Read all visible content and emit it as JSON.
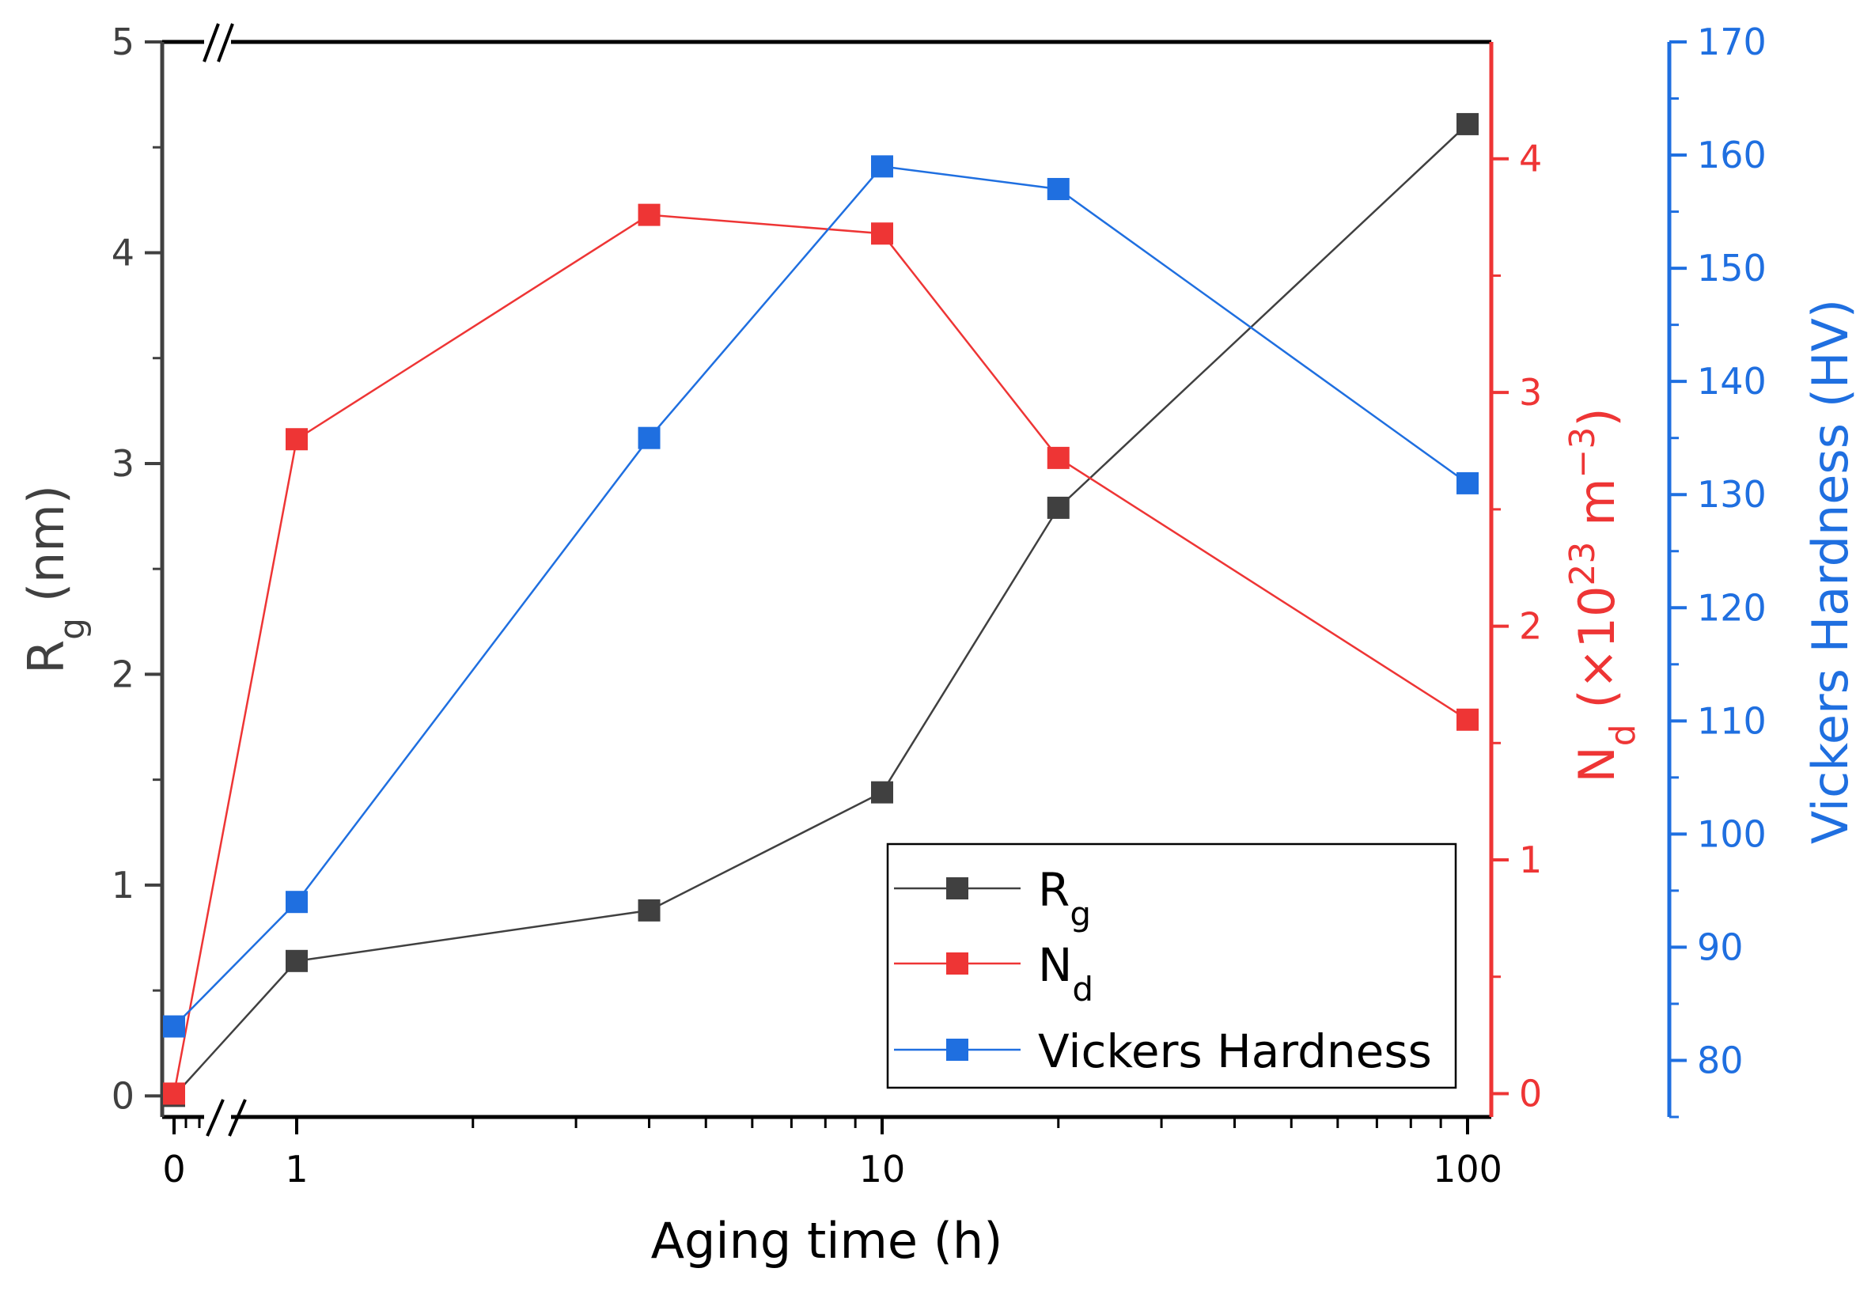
{
  "chart_data": {
    "type": "line",
    "x_scale": "log with broken segment at 0",
    "x": [
      0,
      1,
      4,
      10,
      20,
      100
    ],
    "xlabel": "Aging time (h)",
    "x_ticks": [
      "0",
      "1",
      "10",
      "100"
    ],
    "series": [
      {
        "name": "Rg",
        "legend_main": "R",
        "legend_sub": "g",
        "axis": "left",
        "color": "#404040",
        "values": [
          0.0,
          0.64,
          0.88,
          1.44,
          2.79,
          4.61
        ]
      },
      {
        "name": "Nd",
        "legend_main": "N",
        "legend_sub": "d",
        "axis": "right1",
        "color": "#ee3535",
        "values": [
          0.0,
          2.8,
          3.76,
          3.68,
          2.72,
          1.6
        ]
      },
      {
        "name": "Vickers Hardness",
        "legend_main": "Vickers Hardness",
        "legend_sub": "",
        "axis": "right2",
        "color": "#1f6fe0",
        "values": [
          83,
          94,
          135,
          159,
          157,
          131
        ]
      }
    ],
    "y_left": {
      "label_main": "R",
      "label_sub": "g",
      "label_rest": " (nm)",
      "ylim": [
        -0.1,
        5
      ],
      "ticks": [
        "0",
        "1",
        "2",
        "3",
        "4",
        "5"
      ],
      "color": "#404040"
    },
    "y_right1": {
      "label_main": "N",
      "label_sub": "d",
      "label_mid": " (×10",
      "label_sup": "23",
      "label_unit": " m",
      "label_sup2": "−3",
      "label_end": ")",
      "ylim": [
        -0.1,
        4.5
      ],
      "ticks": [
        "0",
        "1",
        "2",
        "3",
        "4"
      ],
      "color": "#ee3535"
    },
    "y_right2": {
      "label": "Vickers Hardness (HV)",
      "ylim": [
        75,
        170
      ],
      "ticks": [
        "80",
        "90",
        "100",
        "110",
        "120",
        "130",
        "140",
        "150",
        "160",
        "170"
      ],
      "color": "#1f6fe0"
    },
    "legend_position": "bottom-right"
  }
}
